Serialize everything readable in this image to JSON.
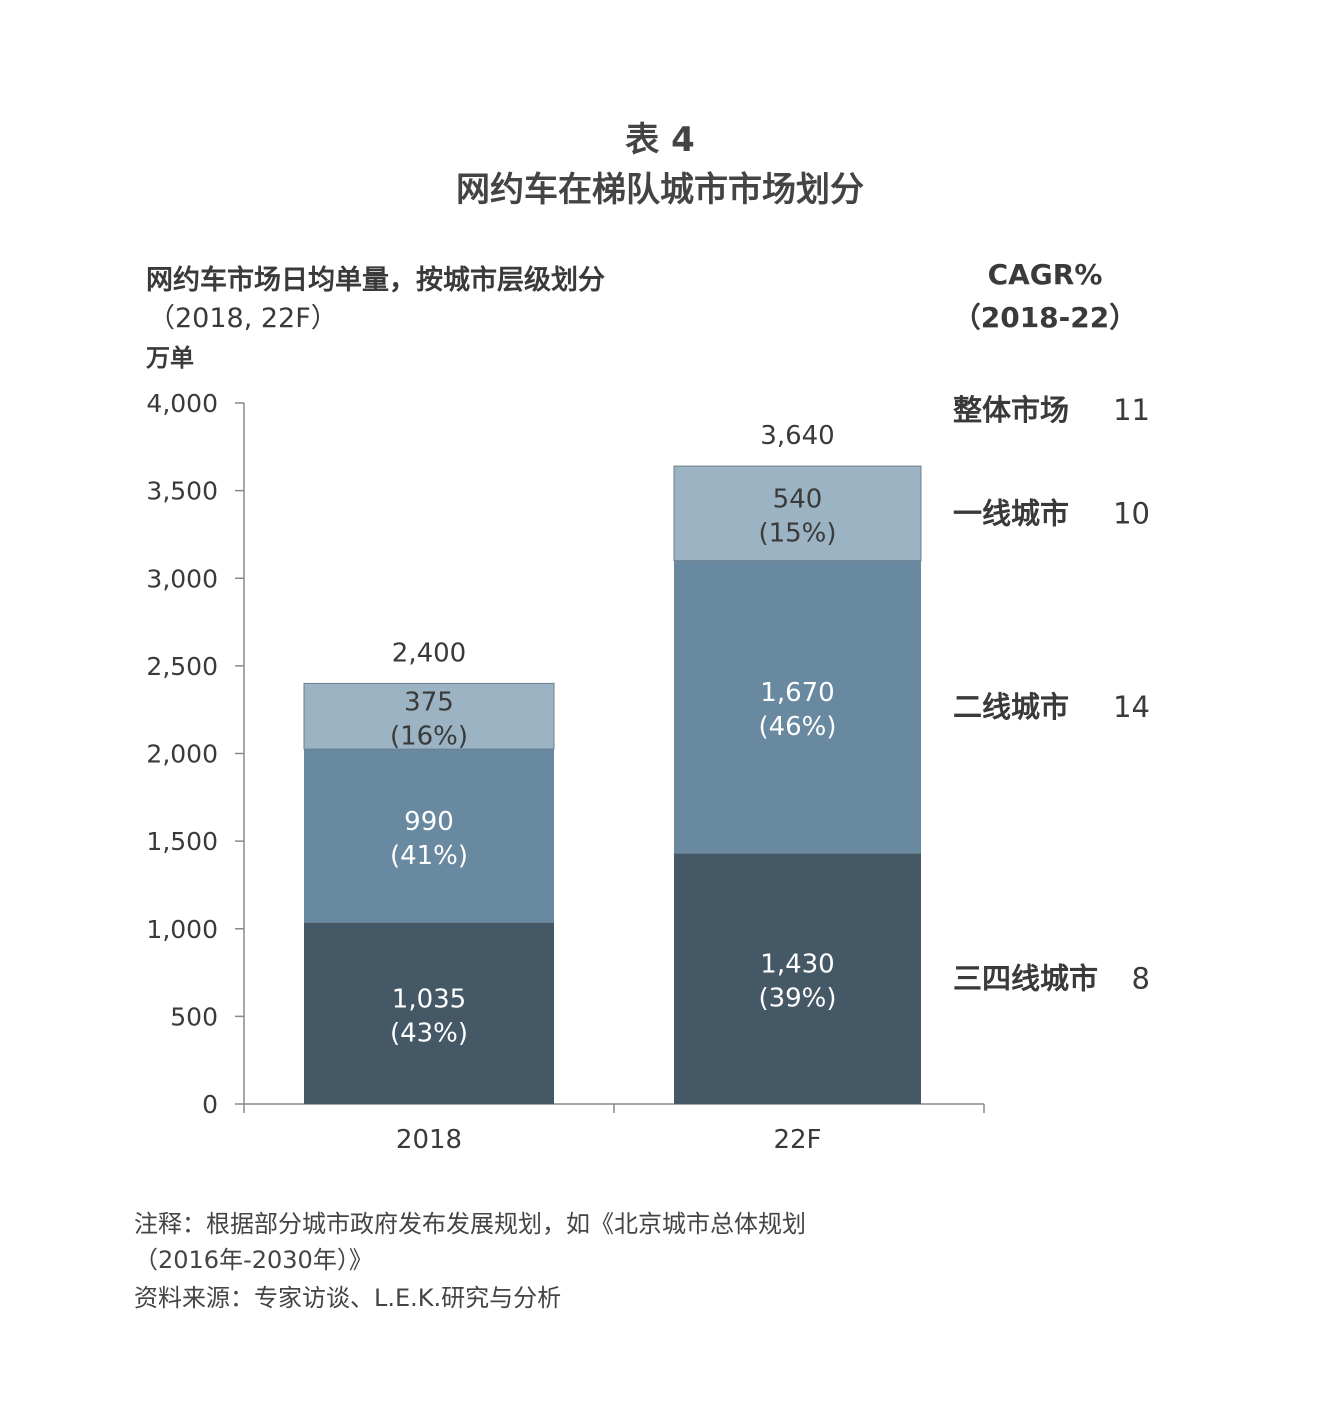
{
  "figure": {
    "label": "表 4",
    "title": "网约车在梯队城市市场划分"
  },
  "chart_data": {
    "type": "bar",
    "stacked": true,
    "title": "网约车市场日均单量，按城市层级划分",
    "subtitle": "（2018, 22F）",
    "ylabel": "万单",
    "ylim": [
      0,
      4000
    ],
    "yticks": [
      0,
      500,
      1000,
      1500,
      2000,
      2500,
      3000,
      3500,
      4000
    ],
    "ytick_labels": [
      "0",
      "500",
      "1,000",
      "1,500",
      "2,000",
      "2,500",
      "3,000",
      "3,500",
      "4,000"
    ],
    "categories": [
      "2018",
      "22F"
    ],
    "totals": [
      2400,
      3640
    ],
    "total_labels": [
      "2,400",
      "3,640"
    ],
    "series": [
      {
        "name": "三四线城市",
        "values": [
          1035,
          1430
        ],
        "value_labels": [
          "1,035",
          "1,430"
        ],
        "share_labels": [
          "(43%)",
          "(39%)"
        ],
        "color": "#445866"
      },
      {
        "name": "二线城市",
        "values": [
          990,
          1670
        ],
        "value_labels": [
          "990",
          "1,670"
        ],
        "share_labels": [
          "(41%)",
          "(46%)"
        ],
        "color": "#6889a0"
      },
      {
        "name": "一线城市",
        "values": [
          375,
          540
        ],
        "value_labels": [
          "375",
          "540"
        ],
        "share_labels": [
          "(16%)",
          "(15%)"
        ],
        "color": "#9bb3c3"
      }
    ],
    "cagr": {
      "header": "CAGR%",
      "period": "（2018-22）",
      "rows": [
        {
          "label": "整体市场",
          "value": "11"
        },
        {
          "label": "一线城市",
          "value": "10"
        },
        {
          "label": "二线城市",
          "value": "14"
        },
        {
          "label": "三四线城市",
          "value": "8"
        }
      ]
    }
  },
  "notes": {
    "note_line1": "注释：根据部分城市政府发布发展规划，如《北京城市总体规划",
    "note_line2": "（2016年-2030年）》",
    "source": "资料来源：专家访谈、L.E.K.研究与分析"
  }
}
